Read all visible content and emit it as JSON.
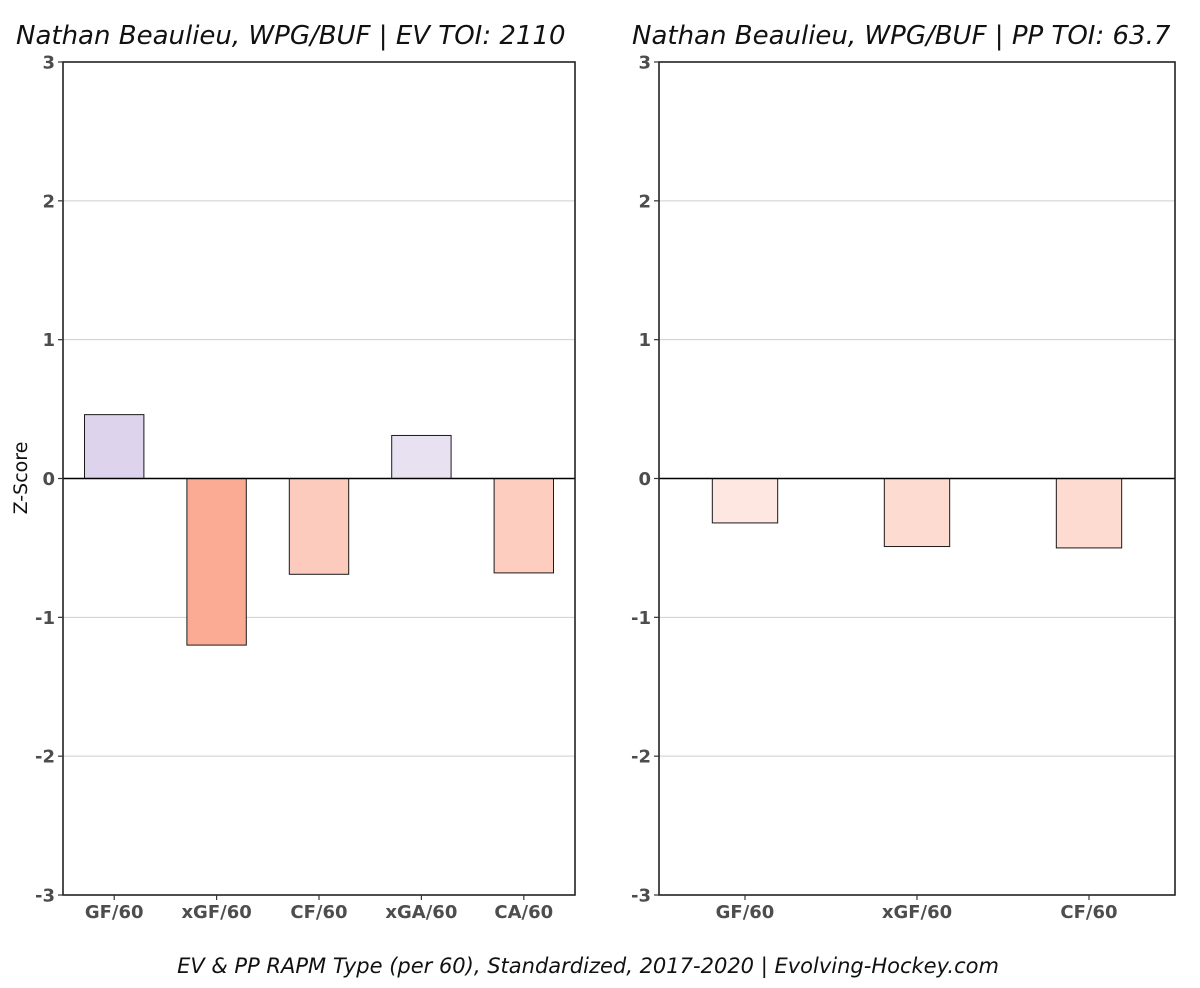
{
  "footer": "EV & PP RAPM Type (per 60), Standardized, 2017-2020    |    Evolving-Hockey.com",
  "chart_data": [
    {
      "type": "bar",
      "title": "Nathan Beaulieu, WPG/BUF  |  EV TOI: 2110",
      "ylabel": "Z-Score",
      "xlabel": "",
      "ylim": [
        -3,
        3
      ],
      "yticks": [
        -3,
        -2,
        -1,
        0,
        1,
        2,
        3
      ],
      "grid": true,
      "categories": [
        "GF/60",
        "xGF/60",
        "CF/60",
        "xGA/60",
        "CA/60"
      ],
      "values": [
        0.46,
        -1.2,
        -0.69,
        0.31,
        -0.68
      ],
      "colors": [
        "#ddd3ec",
        "#fbab94",
        "#fdcbbd",
        "#e8e1f2",
        "#fdcdbf"
      ]
    },
    {
      "type": "bar",
      "title": "Nathan Beaulieu, WPG/BUF  |  PP TOI: 63.7",
      "ylabel": "",
      "xlabel": "",
      "ylim": [
        -3,
        3
      ],
      "yticks": [
        -3,
        -2,
        -1,
        0,
        1,
        2,
        3
      ],
      "grid": true,
      "categories": [
        "GF/60",
        "xGF/60",
        "CF/60"
      ],
      "values": [
        -0.32,
        -0.49,
        -0.5
      ],
      "colors": [
        "#fee7e0",
        "#fddbd1",
        "#fddbd1"
      ]
    }
  ]
}
